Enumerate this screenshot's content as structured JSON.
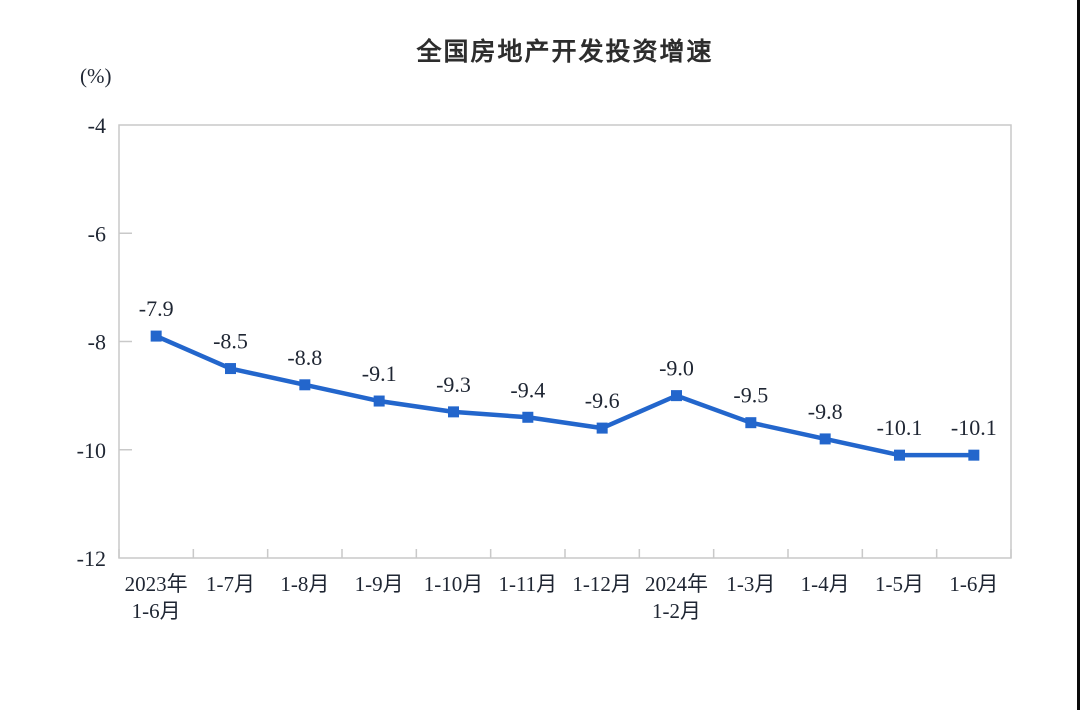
{
  "page": {
    "background_color": "#ffffff",
    "right_border_color": "#0a0a0a"
  },
  "chart_data": {
    "type": "line",
    "title": "全国房地产开发投资增速",
    "ylabel": "(%)",
    "xlabel": "",
    "categories": [
      "2023年\n1-6月",
      "1-7月",
      "1-8月",
      "1-9月",
      "1-10月",
      "1-11月",
      "1-12月",
      "2024年\n1-2月",
      "1-3月",
      "1-4月",
      "1-5月",
      "1-6月"
    ],
    "values": [
      -7.9,
      -8.5,
      -8.8,
      -9.1,
      -9.3,
      -9.4,
      -9.6,
      -9.0,
      -9.5,
      -9.8,
      -10.1,
      -10.1
    ],
    "data_labels": [
      "-7.9",
      "-8.5",
      "-8.8",
      "-9.1",
      "-9.3",
      "-9.4",
      "-9.6",
      "-9.0",
      "-9.5",
      "-9.8",
      "-10.1",
      "-10.1"
    ],
    "ylim": [
      -12,
      -4
    ],
    "yticks": [
      -4,
      -6,
      -8,
      -10,
      -12
    ],
    "grid": false,
    "legend_position": "none",
    "line_color": "#2366cc",
    "marker": "square",
    "text_color": "#1f2633",
    "frame_color": "#c9c9c9"
  }
}
